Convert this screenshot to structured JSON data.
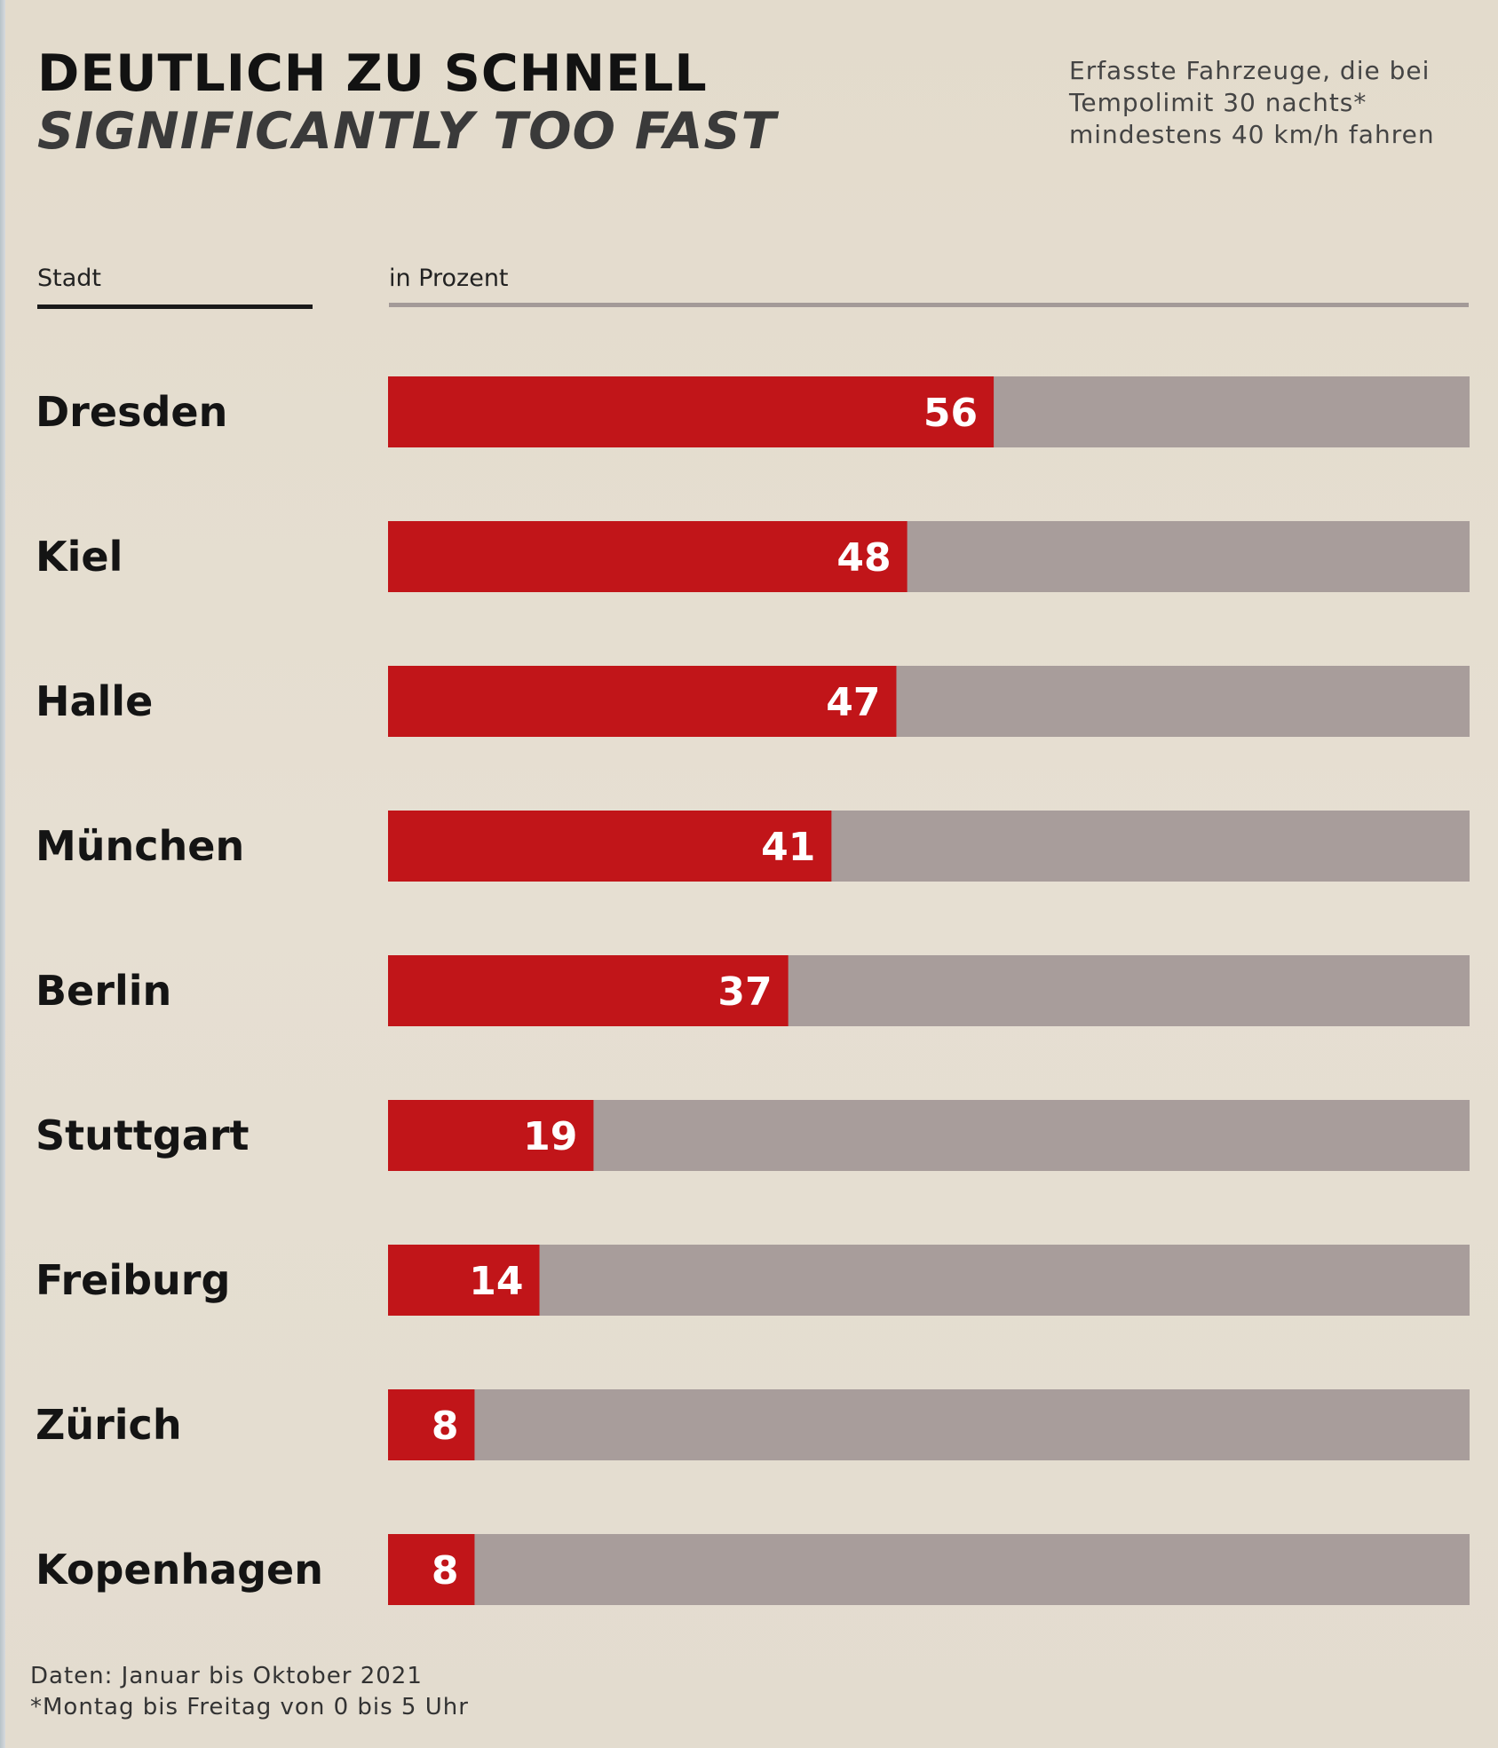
{
  "title": {
    "de": "DEUTLICH ZU SCHNELL",
    "en": "SIGNIFICANTLY TOO FAST"
  },
  "subtitle_lines": [
    "Erfasste Fahrzeuge, die bei",
    "Tempolimit 30 nachts*",
    "mindestens 40 km/h fahren"
  ],
  "headers": {
    "city": "Stadt",
    "value": "in Prozent"
  },
  "footnotes": [
    "Daten: Januar bis Oktober 2021",
    "*Montag bis Freitag von 0 bis 5 Uhr"
  ],
  "colors": {
    "bar": "#c11519",
    "track": "#a89d9b",
    "label": "#ffffff"
  },
  "chart_data": {
    "type": "bar",
    "orientation": "horizontal",
    "categories": [
      "Dresden",
      "Kiel",
      "Halle",
      "München",
      "Berlin",
      "Stuttgart",
      "Freiburg",
      "Zürich",
      "Kopenhagen"
    ],
    "values": [
      56,
      48,
      47,
      41,
      37,
      19,
      14,
      8,
      8
    ],
    "xlim": [
      0,
      100
    ],
    "title": "DEUTLICH ZU SCHNELL",
    "xlabel": "in Prozent",
    "ylabel": "Stadt",
    "grid": false,
    "legend": "none"
  }
}
